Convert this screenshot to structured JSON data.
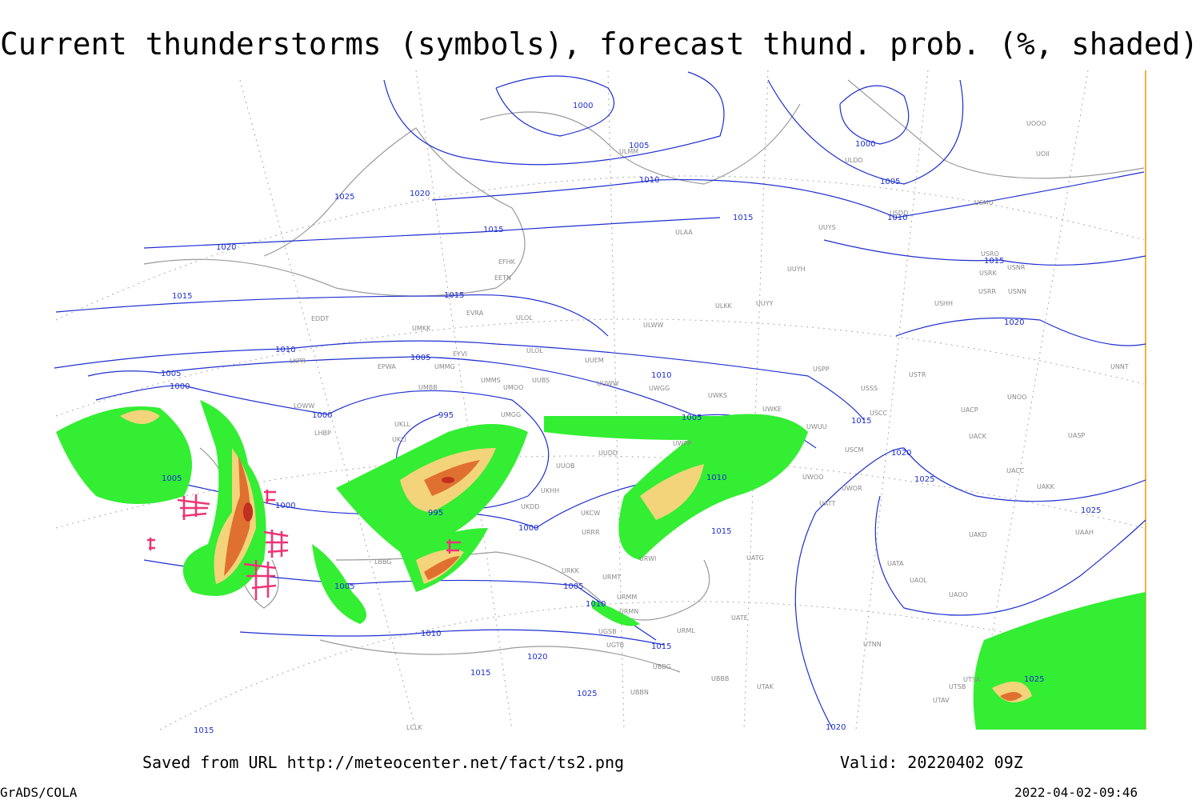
{
  "title": "Current thunderstorms (symbols), forecast thund. prob. (%, shaded)",
  "footer": {
    "saved": "Saved from URL http://meteocenter.net/fact/ts2.png",
    "valid": "Valid: 20220402 09Z",
    "software": "GrADS/COLA",
    "timestamp": "2022-04-02-09:46"
  },
  "isobar_labels": [
    "1000",
    "1005",
    "1010",
    "1015",
    "1000",
    "1005",
    "1010",
    "1025",
    "1020",
    "1015",
    "1020",
    "1015",
    "1015",
    "1010",
    "1005",
    "1005",
    "1000",
    "1010",
    "1005",
    "995",
    "1000",
    "1005",
    "1000",
    "995",
    "1000",
    "1010",
    "1015",
    "1020",
    "1025",
    "1020",
    "1015",
    "1025",
    "1015",
    "1005",
    "1005",
    "1010",
    "1010",
    "1015",
    "1020",
    "1015",
    "1025",
    "1015",
    "1020",
    "1025"
  ],
  "stations": [
    "EFHK",
    "EETN",
    "EVRA",
    "ULOL",
    "EDDT",
    "UMKK",
    "LKPR",
    "EPWA",
    "UMMG",
    "EYVI",
    "ULOL",
    "UUEM",
    "UMMS",
    "UMOO",
    "UUBS",
    "UUWW",
    "UWGG",
    "UWKS",
    "UWKE",
    "UMBB",
    "LOWW",
    "LHBP",
    "UKLL",
    "UKLI",
    "UMGG",
    "UUOB",
    "UUDD",
    "UWPP",
    "UWUU",
    "USCC",
    "USSS",
    "USPP",
    "USTR",
    "UNOO",
    "UACP",
    "UACK",
    "UASP",
    "UACC",
    "UAKK",
    "UWOO",
    "UWOR",
    "UATT",
    "USCM",
    "UAKD",
    "UAAH",
    "UATA",
    "UAOL",
    "UAOO",
    "UATG",
    "UATE",
    "UTNN",
    "URWI",
    "URMT",
    "URMM",
    "URMN",
    "URML",
    "UGSB",
    "UGTB",
    "UBBG",
    "UBBB",
    "UBBN",
    "UTAK",
    "UTAV",
    "UTSB",
    "UTSA",
    "LBBG",
    "LCLK",
    "UKCW",
    "URRR",
    "UKHH",
    "UKDD",
    "URKK",
    "UUYY",
    "UUYH",
    "UUYS",
    "ULKK",
    "ULWW",
    "ULAA",
    "USRR",
    "USNN",
    "USRK",
    "USNR",
    "USRO",
    "USHH",
    "USMU",
    "USDD",
    "UOOO",
    "UOII",
    "UNNT",
    "ULMM",
    "ULDD"
  ]
}
